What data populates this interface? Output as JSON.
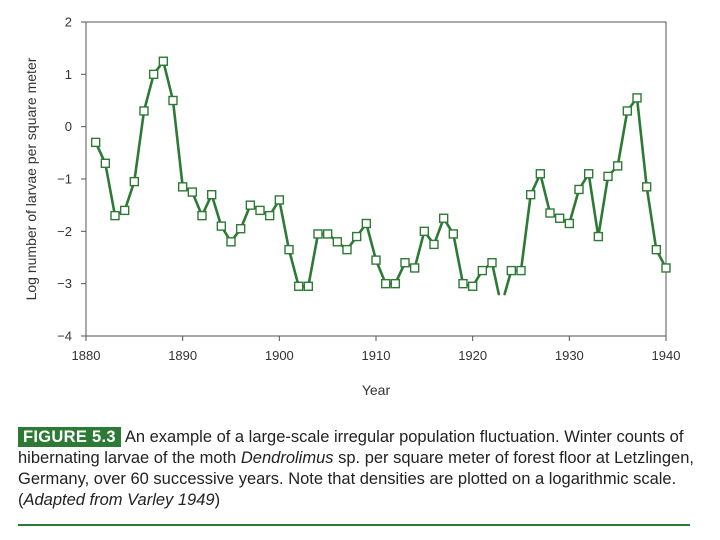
{
  "chart_data": {
    "type": "line",
    "xlabel": "Year",
    "ylabel": "Log number of larvae per square meter",
    "xlim": [
      1880,
      1940
    ],
    "ylim": [
      -4,
      2
    ],
    "x_ticks": [
      "1880",
      "1890",
      "1900",
      "1910",
      "1920",
      "1930",
      "1940"
    ],
    "y_ticks": [
      "2",
      "1",
      "0",
      "−1",
      "−2",
      "−3",
      "−4"
    ],
    "grid": false,
    "series": [
      {
        "name": "Dendrolimus larvae",
        "color": "#2d7a36",
        "segments": [
          {
            "x": [
              1881,
              1882,
              1883,
              1884,
              1885,
              1886,
              1887,
              1888,
              1889,
              1890,
              1891,
              1892,
              1893,
              1894,
              1895,
              1896,
              1897,
              1898,
              1899,
              1900,
              1901,
              1902,
              1903,
              1904,
              1905,
              1906,
              1907,
              1908,
              1909,
              1910,
              1911,
              1912,
              1913,
              1914,
              1915,
              1916,
              1917,
              1918,
              1919,
              1920,
              1921,
              1922,
              1922.7
            ],
            "y": [
              -0.3,
              -0.7,
              -1.7,
              -1.6,
              -1.05,
              0.3,
              1.0,
              1.25,
              0.5,
              -1.15,
              -1.25,
              -1.7,
              -1.3,
              -1.9,
              -2.2,
              -1.95,
              -1.5,
              -1.6,
              -1.7,
              -1.4,
              -2.35,
              -3.05,
              -3.05,
              -2.05,
              -2.05,
              -2.2,
              -2.35,
              -2.1,
              -1.85,
              -2.55,
              -3.0,
              -3.0,
              -2.6,
              -2.7,
              -2.0,
              -2.25,
              -1.75,
              -2.05,
              -3.0,
              -3.05,
              -2.75,
              -2.6,
              -3.2
            ]
          },
          {
            "x": [
              1923.3,
              1924,
              1925,
              1926,
              1927,
              1928,
              1929,
              1930,
              1931,
              1932,
              1933,
              1934,
              1935,
              1936,
              1937,
              1938,
              1939,
              1940
            ],
            "y": [
              -3.2,
              -2.75,
              -2.75,
              -1.3,
              -0.9,
              -1.65,
              -1.75,
              -1.85,
              -1.2,
              -0.9,
              -2.1,
              -0.95,
              -0.75,
              0.3,
              0.55,
              -1.15,
              -2.35,
              -2.7
            ]
          }
        ]
      }
    ]
  },
  "caption": {
    "figure_label": "FIGURE 5.3",
    "text_1": "An example of a large-scale irregular population fluctuation. Winter counts of hibernating larvae of the moth ",
    "genus": "Dendrolimus",
    "text_2": " sp. per square meter of forest floor at Letzlingen, Germany, over 60 successive years. Note that densities are plotted on a logarithmic scale. (",
    "source": "Adapted from Varley 1949",
    "text_3": ")"
  }
}
